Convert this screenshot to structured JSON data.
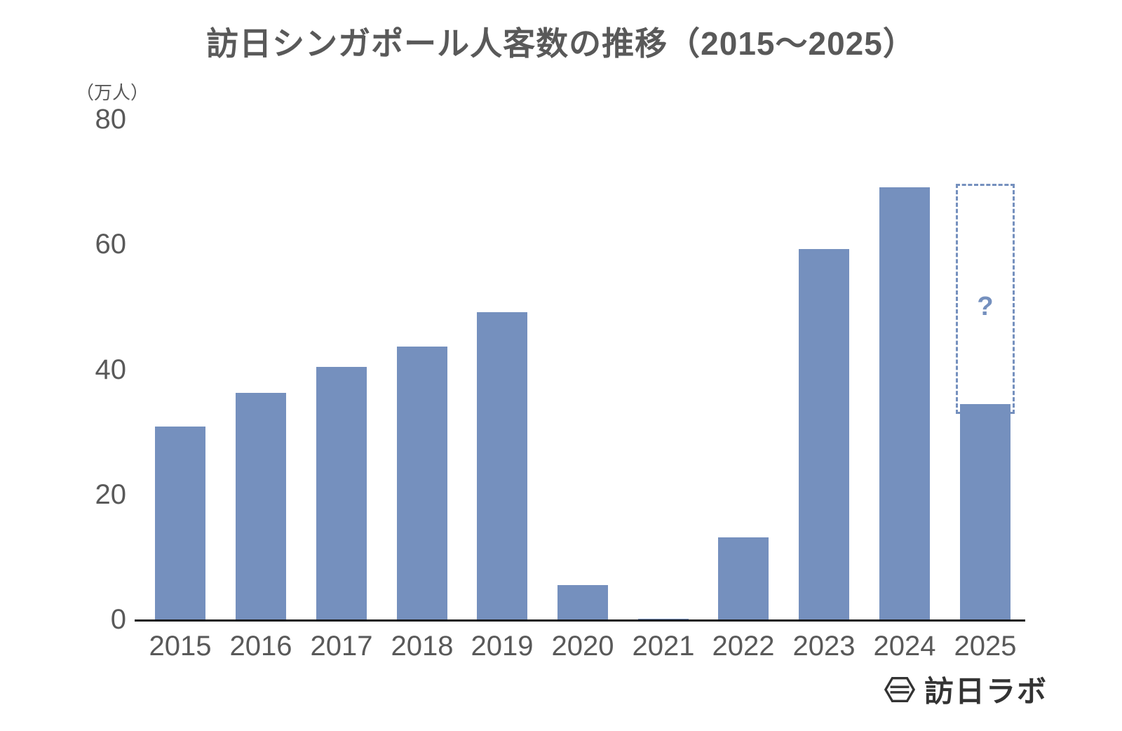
{
  "title": "訪日シンガポール人客数の推移（2015～2025）",
  "unit_label": "（万人）",
  "logo_text": "訪日ラボ",
  "colors": {
    "bar": "#7590BE",
    "axis": "#1a1a1a",
    "text": "#595959",
    "logo": "#333333"
  },
  "chart_data": {
    "type": "bar",
    "title": "訪日シンガポール人客数の推移（2015～2025）",
    "xlabel": "",
    "ylabel": "（万人）",
    "ylim": [
      0,
      80
    ],
    "yticks": [
      0,
      20,
      40,
      60,
      80
    ],
    "grid": false,
    "legend": "none",
    "categories": [
      "2015",
      "2016",
      "2017",
      "2018",
      "2019",
      "2020",
      "2021",
      "2022",
      "2023",
      "2024",
      "2025"
    ],
    "values": [
      30.9,
      36.2,
      40.4,
      43.7,
      49.2,
      5.5,
      0.1,
      13.1,
      59.2,
      69.1,
      34.4
    ],
    "forecast": {
      "category": "2025",
      "solid_value": 34.4,
      "dashed_top": 69.7,
      "dashed_bottom": 33.6,
      "label": "?"
    }
  }
}
